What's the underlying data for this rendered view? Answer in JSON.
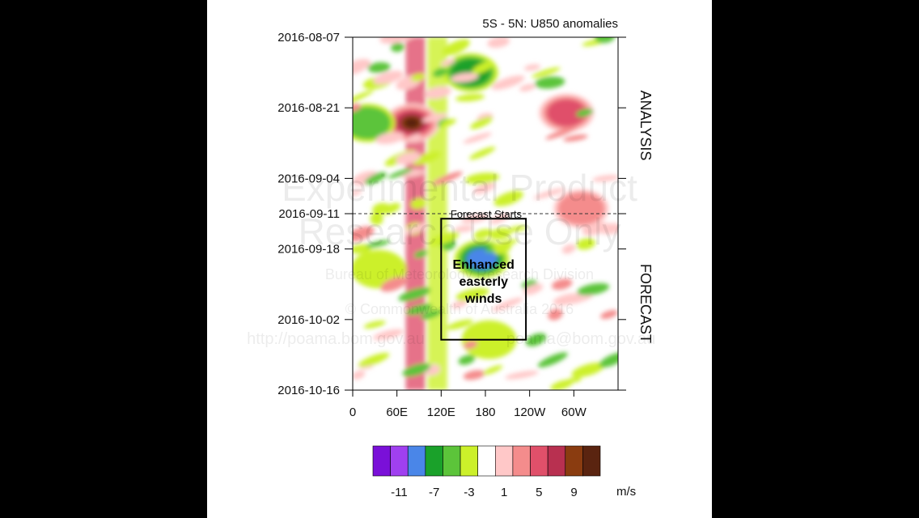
{
  "chart_data": {
    "type": "heatmap",
    "title": "5S - 5N: U850 anomalies",
    "y_tick_labels": [
      "2016-08-07",
      "2016-08-21",
      "2016-09-04",
      "2016-09-11",
      "2016-09-18",
      "2016-10-02",
      "2016-10-16"
    ],
    "x_tick_labels": [
      "0",
      "60E",
      "120E",
      "180",
      "120W",
      "60W"
    ],
    "x_tick_longitudes": [
      0,
      60,
      120,
      180,
      240,
      300
    ],
    "xlim": [
      0,
      360
    ],
    "ylim": [
      "2016-08-07",
      "2016-10-16"
    ],
    "y_tick_dates": [
      "2016-08-07",
      "2016-08-21",
      "2016-09-04",
      "2016-09-11",
      "2016-09-18",
      "2016-10-02",
      "2016-10-16"
    ],
    "right_labels": [
      "ANALYSIS",
      "FORECAST"
    ],
    "forecast_start_label": "Forecast Starts",
    "forecast_start_date": "2016-09-11",
    "annotation": {
      "lines": [
        "Enhanced",
        "easterly",
        "winds"
      ],
      "lon_range": [
        120,
        235
      ],
      "date_range": [
        "2016-09-12",
        "2016-10-06"
      ]
    },
    "colorbar": {
      "colors": [
        "#7a10d8",
        "#a040f0",
        "#4a86e8",
        "#1aa12a",
        "#5cc43a",
        "#ccf02a",
        "#ffffff",
        "#ffc8c8",
        "#f48c8c",
        "#e0506a",
        "#b83050",
        "#8a3c10",
        "#5a2410"
      ],
      "tick_labels": [
        "-11",
        "-7",
        "-3",
        "1",
        "5",
        "9"
      ],
      "unit": "m/s"
    },
    "features": [
      {
        "type": "band",
        "lon": 85,
        "from": "2016-08-07",
        "to": "2016-10-16",
        "value": 5
      },
      {
        "type": "band",
        "lon": 115,
        "from": "2016-08-07",
        "to": "2016-10-16",
        "value": -3
      },
      {
        "type": "patch",
        "lon": 160,
        "date": "2016-08-14",
        "value": -6
      },
      {
        "type": "patch",
        "lon": 80,
        "date": "2016-08-24",
        "value": 12
      },
      {
        "type": "patch",
        "lon": 175,
        "date": "2016-09-20",
        "value": -8
      },
      {
        "type": "patch",
        "lon": 185,
        "date": "2016-10-06",
        "value": -3
      },
      {
        "type": "patch",
        "lon": 290,
        "date": "2016-08-22",
        "value": 6
      },
      {
        "type": "patch",
        "lon": 310,
        "date": "2016-09-10",
        "value": 5
      },
      {
        "type": "patch",
        "lon": 20,
        "date": "2016-08-24",
        "value": -4
      },
      {
        "type": "patch",
        "lon": 35,
        "date": "2016-09-22",
        "value": -3
      }
    ]
  },
  "watermark": {
    "lines": [
      "Experimental Product",
      "Research Use Only",
      "Bureau of Meteorology Research Division",
      "© Commonwealth of Australia 2016",
      "http://poama.bom.gov.au",
      "poama@bom.gov.au"
    ]
  }
}
